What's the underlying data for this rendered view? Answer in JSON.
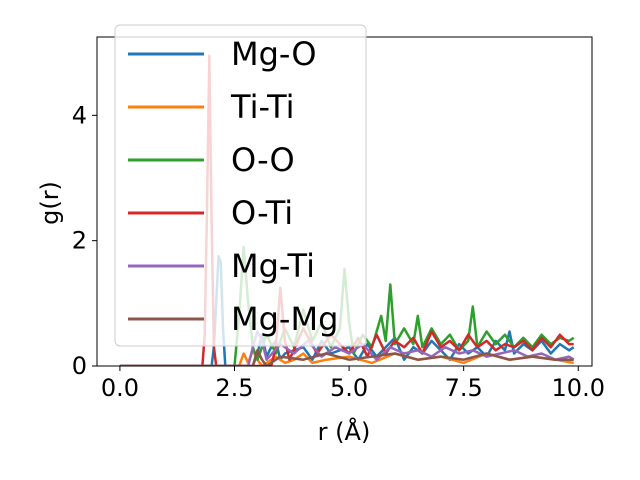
{
  "chart_data": {
    "type": "line",
    "title": "",
    "xlabel": "r (Å)",
    "ylabel": "g(r)",
    "xlim": [
      -0.5,
      10.3
    ],
    "ylim": [
      0,
      5.25
    ],
    "xticks": [
      0.0,
      2.5,
      5.0,
      7.5,
      10.0
    ],
    "xtick_labels": [
      "0.0",
      "2.5",
      "5.0",
      "7.5",
      "10.0"
    ],
    "yticks": [
      0,
      2,
      4
    ],
    "ytick_labels": [
      "0",
      "2",
      "4"
    ],
    "grid": false,
    "legend_position": "upper-left",
    "series": [
      {
        "name": "Mg-O",
        "color": "#1f77b4",
        "x": [
          0,
          2.0,
          2.05,
          2.1,
          2.15,
          2.2,
          2.25,
          2.3,
          2.9,
          3.0,
          3.1,
          3.2,
          3.3,
          3.4,
          3.5,
          3.6,
          4.0,
          4.2,
          4.4,
          4.6,
          5.0,
          5.2,
          5.4,
          5.6,
          5.8,
          6.0,
          6.2,
          6.4,
          6.6,
          6.8,
          7.0,
          7.2,
          7.4,
          7.6,
          7.8,
          8.0,
          8.2,
          8.4,
          8.5,
          8.6,
          8.8,
          9.0,
          9.2,
          9.4,
          9.6,
          9.8,
          9.9
        ],
        "y": [
          0,
          0,
          0.3,
          1.0,
          1.75,
          1.65,
          0.6,
          0,
          0,
          0.2,
          0.5,
          0.15,
          0.3,
          0.4,
          0.1,
          0.2,
          0.3,
          0.1,
          0.4,
          0.2,
          0.3,
          0.1,
          0.35,
          0.15,
          0.3,
          0.45,
          0.1,
          0.3,
          0.2,
          0.4,
          0.25,
          0.1,
          0.35,
          0.2,
          0.3,
          0.15,
          0.4,
          0.25,
          0.55,
          0.2,
          0.35,
          0.25,
          0.4,
          0.2,
          0.35,
          0.25,
          0.3
        ]
      },
      {
        "name": "Ti-Ti",
        "color": "#ff7f0e",
        "x": [
          0,
          2.6,
          2.7,
          2.8,
          2.9,
          3.0,
          3.1,
          3.4,
          3.6,
          3.8,
          4.0,
          4.2,
          4.5,
          5.0,
          5.5,
          6.0,
          6.5,
          7.0,
          7.5,
          8.0,
          8.5,
          9.0,
          9.5,
          9.9
        ],
        "y": [
          0,
          0,
          0.2,
          0.05,
          0.25,
          0.1,
          0,
          0.15,
          0.05,
          0.1,
          0.2,
          0.05,
          0.1,
          0.15,
          0.05,
          0.2,
          0.1,
          0.15,
          0.05,
          0.2,
          0.1,
          0.15,
          0.1,
          0.05
        ]
      },
      {
        "name": "O-O",
        "color": "#2ca02c",
        "x": [
          0,
          2.5,
          2.6,
          2.7,
          2.8,
          2.9,
          3.0,
          3.2,
          3.4,
          3.6,
          3.8,
          4.0,
          4.2,
          4.4,
          4.6,
          4.8,
          4.9,
          5.0,
          5.1,
          5.3,
          5.5,
          5.7,
          5.8,
          5.9,
          6.0,
          6.2,
          6.4,
          6.5,
          6.6,
          6.8,
          7.0,
          7.2,
          7.4,
          7.6,
          7.7,
          7.8,
          8.0,
          8.2,
          8.4,
          8.6,
          8.8,
          9.0,
          9.2,
          9.4,
          9.6,
          9.8,
          9.9
        ],
        "y": [
          0,
          0,
          0.8,
          1.9,
          1.0,
          0.3,
          0.1,
          0.5,
          0.2,
          0.6,
          0.3,
          0.9,
          0.4,
          0.7,
          0.3,
          0.6,
          1.55,
          0.7,
          0.2,
          0.5,
          0.3,
          0.8,
          0.4,
          1.3,
          0.35,
          0.6,
          0.35,
          0.8,
          0.3,
          0.6,
          0.35,
          0.5,
          0.25,
          0.4,
          0.95,
          0.3,
          0.55,
          0.35,
          0.5,
          0.3,
          0.45,
          0.3,
          0.5,
          0.35,
          0.45,
          0.4,
          0.45
        ]
      },
      {
        "name": "O-Ti",
        "color": "#d62728",
        "x": [
          0,
          1.8,
          1.85,
          1.9,
          1.95,
          2.0,
          2.05,
          2.1,
          3.3,
          3.4,
          3.5,
          3.6,
          3.7,
          4.0,
          4.3,
          4.6,
          5.0,
          5.2,
          5.4,
          5.6,
          5.8,
          6.0,
          6.2,
          6.4,
          6.6,
          6.8,
          7.0,
          7.2,
          7.4,
          7.6,
          7.8,
          8.0,
          8.2,
          8.4,
          8.6,
          8.8,
          9.0,
          9.2,
          9.4,
          9.6,
          9.8,
          9.9
        ],
        "y": [
          0,
          0,
          0.5,
          2.5,
          4.95,
          2.3,
          0.3,
          0,
          0,
          0.3,
          1.25,
          0.4,
          0.1,
          0.6,
          0.2,
          0.5,
          0.2,
          0.45,
          0.15,
          0.5,
          0.2,
          0.4,
          0.3,
          0.45,
          0.2,
          0.55,
          0.3,
          0.4,
          0.25,
          0.5,
          0.3,
          0.4,
          0.25,
          0.35,
          0.3,
          0.4,
          0.25,
          0.45,
          0.3,
          0.5,
          0.35,
          0.35
        ]
      },
      {
        "name": "Mg-Ti",
        "color": "#9467bd",
        "x": [
          0,
          2.8,
          2.9,
          3.0,
          3.1,
          3.2,
          3.5,
          3.8,
          4.1,
          4.4,
          4.7,
          5.0,
          5.3,
          5.6,
          5.9,
          6.2,
          6.5,
          6.8,
          7.1,
          7.4,
          7.7,
          8.0,
          8.3,
          8.6,
          8.9,
          9.2,
          9.5,
          9.8,
          9.9
        ],
        "y": [
          0,
          0,
          0.3,
          0.55,
          0.4,
          0.1,
          0.35,
          0.2,
          0.4,
          0.15,
          0.3,
          0.2,
          0.35,
          0.1,
          0.3,
          0.2,
          0.25,
          0.15,
          0.3,
          0.2,
          0.25,
          0.15,
          0.2,
          0.25,
          0.15,
          0.2,
          0.1,
          0.15,
          0.1
        ]
      },
      {
        "name": "Mg-Mg",
        "color": "#8c564b",
        "x": [
          0,
          2.9,
          3.0,
          3.1,
          3.2,
          3.5,
          4.0,
          4.5,
          5.0,
          5.5,
          6.0,
          6.5,
          7.0,
          7.5,
          8.0,
          8.5,
          9.0,
          9.5,
          9.9
        ],
        "y": [
          0,
          0,
          0.25,
          0.1,
          0,
          0.15,
          0.1,
          0.2,
          0.1,
          0.15,
          0.2,
          0.1,
          0.15,
          0.1,
          0.2,
          0.1,
          0.15,
          0.1,
          0.1
        ]
      }
    ]
  }
}
